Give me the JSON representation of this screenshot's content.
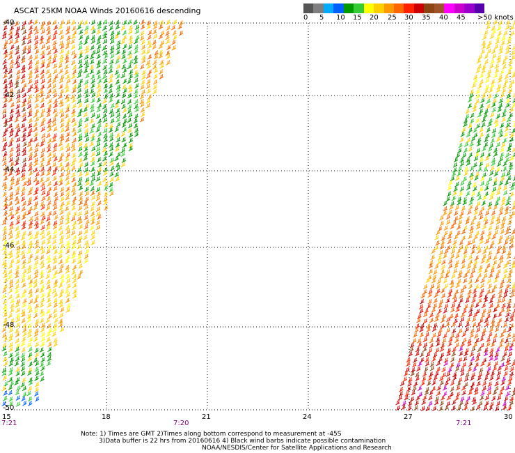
{
  "title": "ASCAT 25KM NOAA Winds 20160616 descending",
  "legend": {
    "unit_label": ">50 knots",
    "ticks": [
      "0",
      "5",
      "10",
      "15",
      "20",
      "25",
      "30",
      "35",
      "40",
      "45"
    ],
    "colors": [
      "#555555",
      "#7f7f7f",
      "#00aaff",
      "#0060ff",
      "#009900",
      "#33cc33",
      "#ffff00",
      "#ffd000",
      "#ff9900",
      "#ff6600",
      "#ff2200",
      "#cc0000",
      "#8b4513",
      "#a0522d",
      "#ff00ff",
      "#cc00cc",
      "#9900cc",
      "#5500aa"
    ]
  },
  "axes": {
    "latitudes": [
      "-40",
      "-42",
      "-44",
      "-46",
      "-48",
      "-50"
    ],
    "longitudes": [
      "15",
      "18",
      "21",
      "24",
      "27",
      "30"
    ]
  },
  "times": {
    "left": "7:21",
    "middle": "7:20",
    "right": "7:21"
  },
  "notes": {
    "line1": "Note: 1) Times are GMT 2)Times along bottom correspond to measurement at -45S",
    "line2": "3)Data buffer is 22 hrs from 20160616 4) Black wind barbs indicate possible contamination",
    "line3": "NOAA/NESDIS/Center for Satellite Applications and Research"
  }
}
